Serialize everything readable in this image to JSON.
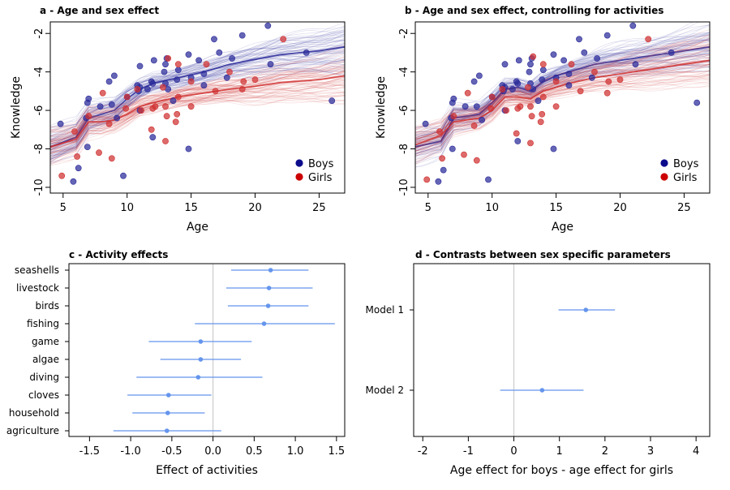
{
  "chart_data": [
    {
      "id": "a",
      "type": "scatter",
      "title": "a - Age and sex effect",
      "xlabel": "Age",
      "ylabel": "Knowledge",
      "xlim": [
        4,
        27
      ],
      "ylim": [
        -10.3,
        -1.4
      ],
      "xticks": [
        5,
        10,
        15,
        20,
        25
      ],
      "yticks": [
        -2,
        -4,
        -6,
        -8,
        -10
      ],
      "legend_position": "bottom-right",
      "legend": [
        {
          "name": "Boys",
          "color": "#0b0b8c"
        },
        {
          "name": "Girls",
          "color": "#cc0000"
        }
      ],
      "series": [
        {
          "name": "Boys",
          "color": "#2a2a9a",
          "trend_x": [
            4,
            6,
            7,
            8,
            9,
            10,
            11,
            12,
            14,
            16,
            18,
            20,
            22,
            25,
            27
          ],
          "trend_y": [
            -7.9,
            -7.4,
            -6.4,
            -6.2,
            -6.0,
            -5.4,
            -4.9,
            -4.6,
            -4.3,
            -4.0,
            -3.6,
            -3.35,
            -3.1,
            -2.9,
            -2.7
          ],
          "points": [
            [
              4.8,
              -6.7
            ],
            [
              5.8,
              -9.7
            ],
            [
              6.2,
              -9.0
            ],
            [
              6.9,
              -7.9
            ],
            [
              6.9,
              -5.6
            ],
            [
              7.0,
              -5.4
            ],
            [
              6.8,
              -6.4
            ],
            [
              7.9,
              -5.8
            ],
            [
              8.6,
              -4.5
            ],
            [
              8.8,
              -5.7
            ],
            [
              9.0,
              -4.2
            ],
            [
              9.2,
              -6.4
            ],
            [
              9.7,
              -9.4
            ],
            [
              10.0,
              -5.3
            ],
            [
              10.8,
              -4.7
            ],
            [
              10.9,
              -5.0
            ],
            [
              11.0,
              -6.0
            ],
            [
              11.0,
              -3.7
            ],
            [
              11.0,
              -4.8
            ],
            [
              11.6,
              -4.9
            ],
            [
              11.9,
              -4.5
            ],
            [
              12.0,
              -4.6
            ],
            [
              12.0,
              -7.4
            ],
            [
              12.1,
              -3.4
            ],
            [
              12.9,
              -4.0
            ],
            [
              13.0,
              -3.6
            ],
            [
              13.1,
              -3.3
            ],
            [
              13.0,
              -4.6
            ],
            [
              13.2,
              -4.9
            ],
            [
              13.6,
              -5.5
            ],
            [
              13.9,
              -4.4
            ],
            [
              14.0,
              -3.9
            ],
            [
              14.8,
              -3.1
            ],
            [
              14.8,
              -8.0
            ],
            [
              15.0,
              -4.3
            ],
            [
              15.6,
              -3.4
            ],
            [
              16.0,
              -4.7
            ],
            [
              16.0,
              -4.1
            ],
            [
              16.8,
              -2.3
            ],
            [
              17.2,
              -3.0
            ],
            [
              17.8,
              -4.3
            ],
            [
              18.2,
              -3.3
            ],
            [
              19.0,
              -2.1
            ],
            [
              21.0,
              -1.6
            ],
            [
              21.2,
              -3.6
            ],
            [
              24.0,
              -3.0
            ],
            [
              26.0,
              -5.5
            ]
          ]
        },
        {
          "name": "Girls",
          "color": "#d03030",
          "trend_x": [
            4,
            6,
            7,
            8,
            9,
            10,
            11,
            12,
            14,
            16,
            18,
            20,
            22,
            25,
            27
          ],
          "trend_y": [
            -7.9,
            -7.5,
            -6.6,
            -6.6,
            -6.5,
            -6.2,
            -5.8,
            -5.6,
            -5.3,
            -5.1,
            -4.9,
            -4.75,
            -4.55,
            -4.4,
            -4.2
          ],
          "points": [
            [
              4.9,
              -9.4
            ],
            [
              5.9,
              -7.1
            ],
            [
              6.1,
              -8.4
            ],
            [
              7.0,
              -6.3
            ],
            [
              7.8,
              -8.2
            ],
            [
              8.1,
              -5.1
            ],
            [
              8.6,
              -6.7
            ],
            [
              8.8,
              -8.5
            ],
            [
              9.9,
              -5.9
            ],
            [
              10.0,
              -5.3
            ],
            [
              10.8,
              -4.9
            ],
            [
              11.1,
              -6.0
            ],
            [
              11.9,
              -7.0
            ],
            [
              12.0,
              -5.9
            ],
            [
              12.2,
              -5.8
            ],
            [
              12.8,
              -4.8
            ],
            [
              13.0,
              -5.8
            ],
            [
              13.1,
              -6.3
            ],
            [
              13.0,
              -7.6
            ],
            [
              13.2,
              -3.3
            ],
            [
              13.8,
              -6.6
            ],
            [
              13.9,
              -6.2
            ],
            [
              14.0,
              -5.3
            ],
            [
              14.0,
              -3.6
            ],
            [
              15.0,
              -5.8
            ],
            [
              15.0,
              -4.5
            ],
            [
              16.2,
              -3.6
            ],
            [
              16.9,
              -5.0
            ],
            [
              18.0,
              -4.0
            ],
            [
              19.0,
              -4.9
            ],
            [
              19.1,
              -4.5
            ],
            [
              20.0,
              -4.4
            ],
            [
              22.2,
              -2.3
            ]
          ]
        }
      ]
    },
    {
      "id": "b",
      "type": "scatter",
      "title": "b - Age and sex effect, controlling for activities",
      "xlabel": "Age",
      "ylabel": "Knowledge",
      "xlim": [
        4,
        27
      ],
      "ylim": [
        -10.3,
        -1.4
      ],
      "xticks": [
        5,
        10,
        15,
        20,
        25
      ],
      "yticks": [
        -2,
        -4,
        -6,
        -8,
        -10
      ],
      "legend_position": "bottom-right",
      "legend": [
        {
          "name": "Boys",
          "color": "#0b0b8c"
        },
        {
          "name": "Girls",
          "color": "#cc0000"
        }
      ],
      "series": [
        {
          "name": "Boys",
          "color": "#2a2a9a",
          "trend_x": [
            4,
            6,
            7,
            8,
            9,
            10,
            11,
            12,
            13,
            14,
            15,
            16,
            18,
            20,
            22,
            25,
            27
          ],
          "trend_y": [
            -7.9,
            -7.6,
            -6.4,
            -6.3,
            -6.2,
            -5.6,
            -4.9,
            -4.8,
            -5.0,
            -4.5,
            -4.2,
            -4.0,
            -3.6,
            -3.4,
            -3.2,
            -2.9,
            -2.7
          ],
          "points": [
            [
              4.8,
              -6.7
            ],
            [
              5.8,
              -9.7
            ],
            [
              6.2,
              -9.1
            ],
            [
              6.9,
              -8.0
            ],
            [
              6.9,
              -5.6
            ],
            [
              7.0,
              -5.4
            ],
            [
              6.8,
              -6.4
            ],
            [
              7.9,
              -5.8
            ],
            [
              8.6,
              -4.5
            ],
            [
              8.8,
              -5.8
            ],
            [
              9.0,
              -4.2
            ],
            [
              9.2,
              -6.5
            ],
            [
              9.7,
              -9.6
            ],
            [
              10.0,
              -5.3
            ],
            [
              10.8,
              -4.7
            ],
            [
              10.9,
              -5.0
            ],
            [
              11.0,
              -6.0
            ],
            [
              11.0,
              -3.6
            ],
            [
              11.0,
              -4.8
            ],
            [
              11.6,
              -4.9
            ],
            [
              11.9,
              -4.5
            ],
            [
              12.0,
              -4.6
            ],
            [
              12.0,
              -7.6
            ],
            [
              12.1,
              -3.4
            ],
            [
              12.9,
              -4.0
            ],
            [
              13.0,
              -3.6
            ],
            [
              13.1,
              -3.3
            ],
            [
              13.0,
              -4.6
            ],
            [
              13.2,
              -4.9
            ],
            [
              13.6,
              -5.5
            ],
            [
              13.9,
              -4.4
            ],
            [
              14.0,
              -3.9
            ],
            [
              14.8,
              -3.1
            ],
            [
              14.8,
              -8.0
            ],
            [
              15.0,
              -4.3
            ],
            [
              15.6,
              -3.4
            ],
            [
              16.0,
              -4.7
            ],
            [
              16.0,
              -4.1
            ],
            [
              16.8,
              -2.3
            ],
            [
              17.2,
              -3.0
            ],
            [
              17.8,
              -4.3
            ],
            [
              18.2,
              -3.3
            ],
            [
              19.0,
              -2.1
            ],
            [
              21.0,
              -1.6
            ],
            [
              21.2,
              -3.6
            ],
            [
              24.0,
              -3.0
            ],
            [
              26.0,
              -5.6
            ]
          ]
        },
        {
          "name": "Girls",
          "color": "#d03030",
          "trend_x": [
            4,
            6,
            7,
            8,
            9,
            10,
            11,
            12,
            13,
            14,
            15,
            16,
            18,
            20,
            22,
            25,
            27
          ],
          "trend_y": [
            -7.8,
            -7.3,
            -6.6,
            -6.5,
            -6.4,
            -6.0,
            -5.3,
            -5.3,
            -5.4,
            -5.0,
            -4.8,
            -4.6,
            -4.3,
            -4.1,
            -3.9,
            -3.6,
            -3.4
          ],
          "points": [
            [
              4.9,
              -9.6
            ],
            [
              5.9,
              -7.1
            ],
            [
              6.1,
              -8.5
            ],
            [
              7.0,
              -6.3
            ],
            [
              7.8,
              -8.3
            ],
            [
              8.1,
              -5.1
            ],
            [
              8.6,
              -6.8
            ],
            [
              8.8,
              -8.6
            ],
            [
              9.9,
              -5.9
            ],
            [
              10.0,
              -5.3
            ],
            [
              10.8,
              -4.9
            ],
            [
              11.1,
              -6.0
            ],
            [
              11.9,
              -7.2
            ],
            [
              12.0,
              -5.9
            ],
            [
              12.2,
              -5.8
            ],
            [
              12.8,
              -4.8
            ],
            [
              13.0,
              -5.8
            ],
            [
              13.1,
              -6.3
            ],
            [
              13.0,
              -7.7
            ],
            [
              13.2,
              -3.2
            ],
            [
              13.8,
              -6.6
            ],
            [
              13.9,
              -6.2
            ],
            [
              14.0,
              -5.3
            ],
            [
              14.0,
              -3.6
            ],
            [
              15.0,
              -5.8
            ],
            [
              15.0,
              -4.5
            ],
            [
              16.2,
              -3.6
            ],
            [
              16.9,
              -5.0
            ],
            [
              18.0,
              -4.0
            ],
            [
              19.0,
              -5.1
            ],
            [
              19.1,
              -4.5
            ],
            [
              20.0,
              -4.4
            ],
            [
              22.2,
              -2.3
            ]
          ]
        }
      ]
    },
    {
      "id": "c",
      "type": "scatter",
      "title": "c - Activity effects",
      "xlabel": "Effect of activities",
      "xlim": [
        -1.75,
        1.6
      ],
      "xticks": [
        -1.5,
        -1.0,
        -0.5,
        0.0,
        0.5,
        1.0,
        1.5
      ],
      "xtick_labels": [
        "-1.5",
        "-1.0",
        "-0.5",
        "0.0",
        "0.5",
        "1.0",
        "1.5"
      ],
      "reference_line": 0,
      "color": "#6495ed",
      "categories": [
        "seashells",
        "livestock",
        "birds",
        "fishing",
        "game",
        "algae",
        "diving",
        "cloves",
        "household",
        "agriculture"
      ],
      "estimates": [
        0.7,
        0.68,
        0.67,
        0.62,
        -0.15,
        -0.15,
        -0.18,
        -0.54,
        -0.55,
        -0.56
      ],
      "lower": [
        0.22,
        0.16,
        0.18,
        -0.22,
        -0.78,
        -0.64,
        -0.93,
        -1.04,
        -0.98,
        -1.21
      ],
      "upper": [
        1.16,
        1.21,
        1.16,
        1.48,
        0.47,
        0.34,
        0.6,
        -0.02,
        -0.1,
        0.1
      ]
    },
    {
      "id": "d",
      "type": "scatter",
      "title": "d - Contrasts between sex specific parameters",
      "xlabel": "Age effect for boys - age effect for girls",
      "xlim": [
        -2.2,
        4.3
      ],
      "xticks": [
        -2,
        -1,
        0,
        1,
        2,
        3,
        4
      ],
      "xtick_labels": [
        "-2",
        "-1",
        "0",
        "1",
        "2",
        "3",
        "4"
      ],
      "reference_line": 0,
      "color": "#6495ed",
      "categories": [
        "Model 1",
        "Model 2"
      ],
      "estimates": [
        1.58,
        0.62
      ],
      "lower": [
        0.98,
        -0.3
      ],
      "upper": [
        2.22,
        1.53
      ]
    }
  ]
}
